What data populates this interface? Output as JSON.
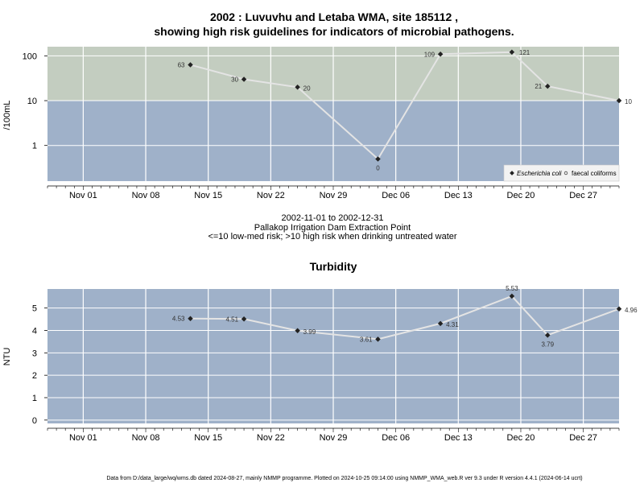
{
  "colors": {
    "high_risk": "#c3cdc0",
    "low_risk": "#9fb1c9",
    "grid": "#ffffff",
    "line": "#e4e4e4",
    "point": "#222222"
  },
  "micro": {
    "title_line1": "2002 : Luvuvhu and Letaba WMA, site 185112 ,",
    "title_line2": "showing high risk guidelines for indicators of microbial pathogens.",
    "ylabel": "/100mL",
    "subtitle_range": "2002-11-01 to 2002-12-31",
    "subtitle_site": "Pallakop Irrigation Dam Extraction Point",
    "subtitle_note": "<=10 low-med risk; >10 high risk when drinking untreated water",
    "legend": {
      "ecoli": "Escherichia coli",
      "faecal": "faecal coliforms"
    }
  },
  "turbidity": {
    "title": "Turbidity",
    "ylabel": "NTU"
  },
  "x_ticks": [
    {
      "date": "2002-11-01",
      "label": "Nov 01"
    },
    {
      "date": "2002-11-08",
      "label": "Nov 08"
    },
    {
      "date": "2002-11-15",
      "label": "Nov 15"
    },
    {
      "date": "2002-11-22",
      "label": "Nov 22"
    },
    {
      "date": "2002-11-29",
      "label": "Nov 29"
    },
    {
      "date": "2002-12-06",
      "label": "Dec 06"
    },
    {
      "date": "2002-12-13",
      "label": "Dec 13"
    },
    {
      "date": "2002-12-20",
      "label": "Dec 20"
    },
    {
      "date": "2002-12-27",
      "label": "Dec 27"
    }
  ],
  "footer": "Data from D:/data_large/wq/wms.db dated 2024-08-27, mainly NMMP programme. Plotted on 2024-10-25 09:14:00 using NMMP_WMA_web.R ver 9.3 under R version 4.4.1 (2024-06-14 ucrt)",
  "chart_data": [
    {
      "type": "line",
      "title": "2002 : Luvuvhu and Letaba WMA, site 185112 , showing high risk guidelines for indicators of microbial pathogens.",
      "ylabel": "/100mL",
      "y_scale": "log",
      "y_ticks": [
        {
          "v": 1,
          "label": "1"
        },
        {
          "v": 10,
          "label": "10"
        },
        {
          "v": 100,
          "label": "100"
        }
      ],
      "xlim": [
        "2002-10-28",
        "2002-12-31"
      ],
      "ylim": [
        0.16,
        160
      ],
      "guideline": 10,
      "legend_position": "bottom-right",
      "grid": true,
      "series": [
        {
          "name": "Escherichia coli",
          "x": [
            "2002-11-13",
            "2002-11-19",
            "2002-11-25",
            "2002-12-04",
            "2002-12-11",
            "2002-12-19",
            "2002-12-23",
            "2002-12-31"
          ],
          "values": [
            63,
            30,
            20,
            0.5,
            109,
            121,
            21,
            10
          ],
          "labels": [
            "63",
            "30",
            "20",
            "0",
            "109",
            "121",
            "21",
            "10"
          ]
        }
      ]
    },
    {
      "type": "line",
      "title": "Turbidity",
      "ylabel": "NTU",
      "y_ticks": [
        {
          "v": 0,
          "label": "0"
        },
        {
          "v": 1,
          "label": "1"
        },
        {
          "v": 2,
          "label": "2"
        },
        {
          "v": 3,
          "label": "3"
        },
        {
          "v": 4,
          "label": "4"
        },
        {
          "v": 5,
          "label": "5"
        }
      ],
      "xlim": [
        "2002-10-28",
        "2002-12-31"
      ],
      "ylim": [
        -0.15,
        5.85
      ],
      "grid": true,
      "series": [
        {
          "name": "Turbidity",
          "x": [
            "2002-11-13",
            "2002-11-19",
            "2002-11-25",
            "2002-12-04",
            "2002-12-11",
            "2002-12-19",
            "2002-12-23",
            "2002-12-31"
          ],
          "values": [
            4.53,
            4.51,
            3.99,
            3.61,
            4.31,
            5.53,
            3.79,
            4.96
          ],
          "labels": [
            "4.53",
            "4.51",
            "3.99",
            "3.61",
            "4.31",
            "5.53",
            "3.79",
            "4.96"
          ]
        }
      ]
    }
  ]
}
